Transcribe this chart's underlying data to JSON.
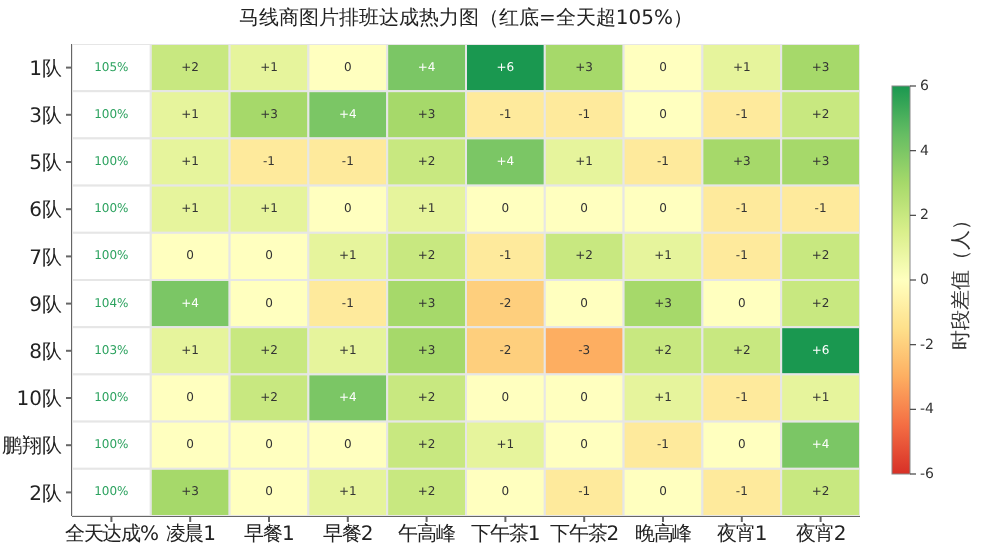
{
  "chart_data": {
    "type": "heatmap",
    "title": "马线商图片排班达成热力图（红底=全天超105%）",
    "clabel": "时段差值（人）",
    "categories": [
      "全天达成%",
      "凌晨1",
      "早餐1",
      "早餐2",
      "午高峰",
      "下午茶1",
      "下午茶2",
      "晚高峰",
      "夜宵1",
      "夜宵2"
    ],
    "y_categories": [
      "1队",
      "3队",
      "5队",
      "6队",
      "7队",
      "9队",
      "8队",
      "10队",
      "鹏翔队",
      "2队"
    ],
    "cells": [
      [
        null,
        2,
        1,
        0,
        4,
        6,
        3,
        0,
        1,
        3
      ],
      [
        null,
        1,
        3,
        4,
        3,
        -1,
        -1,
        0,
        -1,
        2
      ],
      [
        null,
        1,
        -1,
        -1,
        2,
        4,
        1,
        -1,
        3,
        3
      ],
      [
        null,
        1,
        1,
        0,
        1,
        0,
        0,
        0,
        -1,
        -1
      ],
      [
        null,
        0,
        0,
        1,
        2,
        -1,
        2,
        1,
        -1,
        2
      ],
      [
        null,
        4,
        0,
        -1,
        3,
        -2,
        0,
        3,
        0,
        2
      ],
      [
        null,
        1,
        2,
        1,
        3,
        -2,
        -3,
        2,
        2,
        6
      ],
      [
        null,
        0,
        2,
        4,
        2,
        0,
        0,
        1,
        -1,
        1
      ],
      [
        null,
        0,
        0,
        0,
        2,
        1,
        0,
        -1,
        0,
        4
      ],
      [
        null,
        3,
        0,
        1,
        2,
        0,
        -1,
        0,
        -1,
        2
      ]
    ],
    "cell_labels": [
      [
        "105%",
        "+2",
        "+1",
        "0",
        "+4",
        "+6",
        "+3",
        "0",
        "+1",
        "+3"
      ],
      [
        "100%",
        "+1",
        "+3",
        "+4",
        "+3",
        "-1",
        "-1",
        "0",
        "-1",
        "+2"
      ],
      [
        "100%",
        "+1",
        "-1",
        "-1",
        "+2",
        "+4",
        "+1",
        "-1",
        "+3",
        "+3"
      ],
      [
        "100%",
        "+1",
        "+1",
        "0",
        "+1",
        "0",
        "0",
        "0",
        "-1",
        "-1"
      ],
      [
        "100%",
        "0",
        "0",
        "+1",
        "+2",
        "-1",
        "+2",
        "+1",
        "-1",
        "+2"
      ],
      [
        "104%",
        "+4",
        "0",
        "-1",
        "+3",
        "-2",
        "0",
        "+3",
        "0",
        "+2"
      ],
      [
        "103%",
        "+1",
        "+2",
        "+1",
        "+3",
        "-2",
        "-3",
        "+2",
        "+2",
        "+6"
      ],
      [
        "100%",
        "0",
        "+2",
        "+4",
        "+2",
        "0",
        "0",
        "+1",
        "-1",
        "+1"
      ],
      [
        "100%",
        "0",
        "0",
        "0",
        "+2",
        "+1",
        "0",
        "-1",
        "0",
        "+4"
      ],
      [
        "100%",
        "+3",
        "0",
        "+1",
        "+2",
        "0",
        "-1",
        "0",
        "-1",
        "+2"
      ]
    ],
    "clim": [
      -6,
      6
    ],
    "cticks": [
      -6,
      -4,
      -2,
      0,
      2,
      4,
      6
    ]
  }
}
